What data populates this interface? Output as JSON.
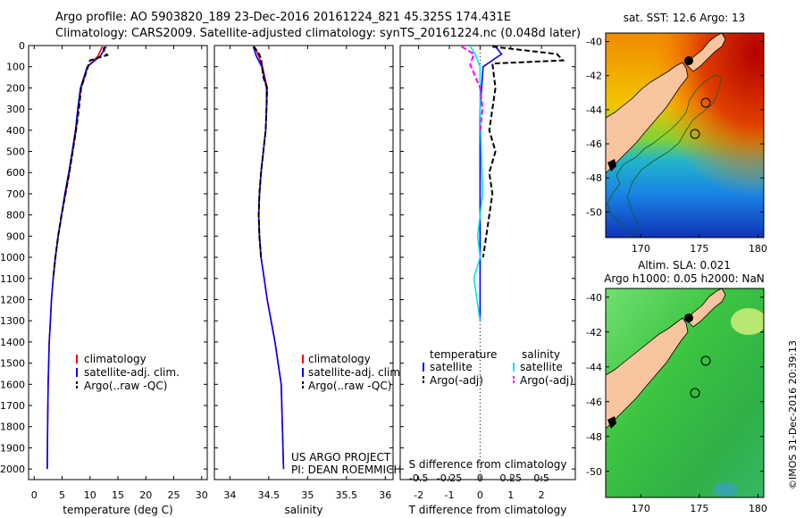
{
  "header": {
    "line1": "Argo profile: AO 5903820_189 23-Dec-2016 20161224_821 45.325S 174.431E",
    "line2": "Climatology: CARS2009. Satellite-adjusted climatology: synTS_20161224.nc (0.048d later)"
  },
  "colors": {
    "climatology": "#ff0000",
    "satellite": "#0000ff",
    "argo": "#000000",
    "sat_salinity": "#00e5ee",
    "argo_salinity": "#ff00ff"
  },
  "chart_data": [
    {
      "type": "line",
      "panel": "temperature",
      "xlabel": "temperature (deg C)",
      "xlim": [
        -1,
        31
      ],
      "xticks": [
        "0",
        "5",
        "10",
        "15",
        "20",
        "25",
        "30"
      ],
      "ylim": [
        0,
        2050
      ],
      "yticks": [
        "0",
        "100",
        "200",
        "300",
        "400",
        "500",
        "600",
        "700",
        "800",
        "900",
        "1000",
        "1100",
        "1200",
        "1300",
        "1400",
        "1500",
        "1600",
        "1700",
        "1800",
        "1900",
        "2000"
      ],
      "legend": [
        "climatology",
        "satellite-adj. clim.",
        "Argo(..raw -QC)"
      ],
      "series": [
        {
          "name": "climatology",
          "style": "solid",
          "x": [
            12.2,
            11.4,
            9.6,
            8.4,
            7.9,
            7.5,
            6.9,
            6.3,
            5.6,
            4.9,
            4.3,
            3.8,
            3.4,
            3.1,
            2.9,
            2.7,
            2.6,
            2.5,
            2.4,
            2.35
          ],
          "y": [
            5,
            50,
            100,
            200,
            300,
            400,
            500,
            600,
            700,
            800,
            900,
            1000,
            1100,
            1200,
            1300,
            1400,
            1500,
            1600,
            1800,
            2000
          ]
        },
        {
          "name": "satellite-adj. clim.",
          "style": "solid",
          "x": [
            12.9,
            11.8,
            9.5,
            8.3,
            7.8,
            7.4,
            6.8,
            6.2,
            5.5,
            4.9,
            4.3,
            3.8,
            3.4,
            3.1,
            2.9,
            2.7,
            2.6,
            2.5,
            2.4,
            2.35
          ],
          "y": [
            5,
            50,
            100,
            200,
            300,
            400,
            500,
            600,
            700,
            800,
            900,
            1000,
            1100,
            1200,
            1300,
            1400,
            1500,
            1600,
            1800,
            2000
          ]
        },
        {
          "name": "Argo(..raw -QC)",
          "style": "dashed",
          "x": [
            12.6,
            12.4,
            13.1,
            10.0,
            8.4,
            8.0,
            7.5,
            6.9,
            6.3,
            5.6,
            4.9,
            4.3,
            3.8,
            3.4
          ],
          "y": [
            5,
            20,
            45,
            70,
            200,
            300,
            400,
            500,
            600,
            700,
            800,
            900,
            1000,
            1100
          ]
        }
      ]
    },
    {
      "type": "line",
      "panel": "salinity",
      "xlabel": "salinity",
      "xlim": [
        33.8,
        36.1
      ],
      "xticks": [
        "34",
        "34.5",
        "35",
        "35.5",
        "36"
      ],
      "ylim": [
        0,
        2050
      ],
      "legend": [
        "climatology",
        "satellite-adj. clim.",
        "Argo(..raw -QC)"
      ],
      "annotation": [
        "US ARGO PROJECT",
        "PI: DEAN ROEMMICH"
      ],
      "series": [
        {
          "name": "climatology",
          "style": "solid",
          "x": [
            34.32,
            34.37,
            34.42,
            34.48,
            34.47,
            34.46,
            34.43,
            34.4,
            34.38,
            34.37,
            34.38,
            34.4,
            34.44,
            34.48,
            34.53,
            34.58,
            34.62,
            34.66,
            34.69
          ],
          "y": [
            5,
            50,
            100,
            200,
            300,
            400,
            500,
            600,
            700,
            800,
            900,
            1000,
            1100,
            1200,
            1300,
            1400,
            1500,
            1600,
            2000
          ]
        },
        {
          "name": "satellite-adj. clim.",
          "style": "solid",
          "x": [
            34.3,
            34.34,
            34.41,
            34.47,
            34.47,
            34.46,
            34.43,
            34.4,
            34.38,
            34.37,
            34.38,
            34.4,
            34.44,
            34.48,
            34.53,
            34.58,
            34.62,
            34.66,
            34.69
          ],
          "y": [
            5,
            50,
            100,
            200,
            300,
            400,
            500,
            600,
            700,
            800,
            900,
            1000,
            1100,
            1200,
            1300,
            1400,
            1500,
            1600,
            2000
          ]
        },
        {
          "name": "Argo(..raw -QC)",
          "style": "dashed",
          "x": [
            34.3,
            34.36,
            34.4,
            34.43,
            34.48,
            34.47,
            34.46,
            34.43,
            34.4,
            34.38,
            34.37,
            34.38,
            34.4
          ],
          "y": [
            5,
            30,
            60,
            150,
            200,
            300,
            400,
            500,
            600,
            700,
            800,
            900,
            1000
          ]
        }
      ]
    },
    {
      "type": "line",
      "panel": "differences",
      "xlabel": "T difference from climatology",
      "xlabel_top": "S difference from climatology",
      "xlim": [
        -2.6,
        3.1
      ],
      "xticks": [
        "-2",
        "-1",
        "0",
        "1",
        "2"
      ],
      "xticks_top": [
        "-0.5",
        "-0.25",
        "0",
        "0.25",
        "0.5"
      ],
      "ylim": [
        0,
        2050
      ],
      "legend_headers": [
        "temperature",
        "salinity"
      ],
      "legend": [
        "satellite",
        "Argo(-adj)",
        "satellite",
        "Argo(-adj)"
      ],
      "series": [
        {
          "name": "satellite",
          "group": "temperature",
          "style": "solid",
          "x": [
            0.5,
            0.7,
            0.1,
            0.05,
            0.0,
            0.0,
            0.0,
            0.0,
            0.0,
            0.0,
            0.0
          ],
          "y": [
            5,
            40,
            100,
            200,
            300,
            500,
            700,
            900,
            1000,
            1200,
            1300
          ]
        },
        {
          "name": "Argo(-adj)",
          "group": "temperature",
          "style": "dashed",
          "x": [
            0.4,
            2.5,
            2.7,
            0.4,
            0.5,
            0.4,
            0.3,
            0.5,
            0.3,
            0.4,
            0.2,
            0.1
          ],
          "y": [
            5,
            40,
            70,
            85,
            200,
            300,
            400,
            500,
            600,
            700,
            900,
            1000
          ]
        },
        {
          "name": "satellite",
          "group": "salinity",
          "style": "solid",
          "x": [
            -0.08,
            -0.04,
            0.0,
            0.0,
            0.0,
            0.01,
            0.02,
            -0.02,
            0.0,
            -0.05,
            0.0
          ],
          "y": [
            5,
            40,
            100,
            200,
            300,
            500,
            700,
            900,
            1000,
            1100,
            1300
          ]
        },
        {
          "name": "Argo(-adj)",
          "group": "salinity",
          "style": "dashed",
          "x": [
            -0.15,
            -0.05,
            -0.08,
            0.0,
            0.02,
            0.0
          ],
          "y": [
            5,
            40,
            90,
            200,
            300,
            400
          ]
        }
      ]
    }
  ],
  "maps": {
    "top": {
      "title": "sat. SST: 12.6 Argo: 13",
      "xticks": [
        "170",
        "175",
        "180"
      ],
      "yticks": [
        "-40",
        "-42",
        "-44",
        "-46",
        "-48",
        "-50"
      ]
    },
    "bottom": {
      "title_line1": "Altim. SLA: 0.021",
      "title_line2": "Argo h1000: 0.05 h2000: NaN",
      "xticks": [
        "170",
        "175",
        "180"
      ],
      "yticks": [
        "-40",
        "-42",
        "-44",
        "-46",
        "-48",
        "-50"
      ]
    }
  },
  "side_label": "©IMOS 31-Dec-2016 20:39:13"
}
